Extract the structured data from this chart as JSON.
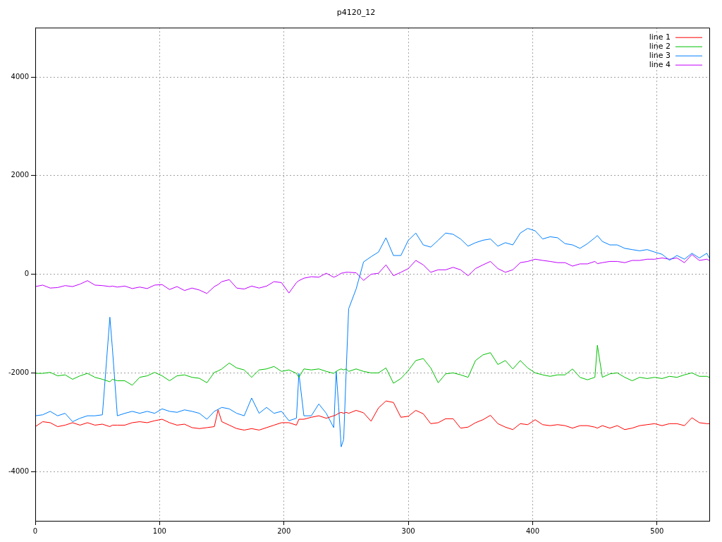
{
  "chart_data": {
    "type": "line",
    "title": "p4120_12",
    "xlim": [
      0,
      542
    ],
    "xticks": [
      0,
      100,
      200,
      300,
      400,
      500
    ],
    "ylim": [
      -5000,
      5000
    ],
    "yticks": [
      -4000,
      -2000,
      0,
      2000,
      4000
    ],
    "grid": true,
    "legend": "top right",
    "marker": "none",
    "line_style": "solid",
    "x": [
      0,
      6,
      12,
      18,
      24,
      30,
      36,
      42,
      48,
      54,
      60,
      62,
      66,
      72,
      78,
      84,
      90,
      96,
      102,
      108,
      114,
      120,
      126,
      132,
      138,
      144,
      147,
      150,
      156,
      162,
      168,
      174,
      180,
      186,
      192,
      198,
      204,
      210,
      212,
      216,
      222,
      228,
      234,
      240,
      242,
      244,
      246,
      248,
      250,
      252,
      258,
      264,
      270,
      276,
      282,
      288,
      294,
      300,
      306,
      312,
      318,
      324,
      330,
      336,
      342,
      348,
      354,
      360,
      366,
      372,
      378,
      384,
      390,
      396,
      402,
      408,
      414,
      420,
      426,
      432,
      438,
      444,
      450,
      452,
      456,
      462,
      468,
      474,
      480,
      486,
      492,
      498,
      504,
      510,
      516,
      522,
      528,
      534,
      540,
      542
    ],
    "series": [
      {
        "name": "line 1",
        "color": "#ff0000",
        "values": [
          -3090,
          -2990,
          -3010,
          -3090,
          -3060,
          -3010,
          -3060,
          -3010,
          -3060,
          -3040,
          -3090,
          -3060,
          -3060,
          -3060,
          -3010,
          -2990,
          -3010,
          -2970,
          -2940,
          -3010,
          -3060,
          -3040,
          -3110,
          -3130,
          -3110,
          -3090,
          -2750,
          -2990,
          -3060,
          -3130,
          -3160,
          -3130,
          -3160,
          -3110,
          -3060,
          -3010,
          -3010,
          -3060,
          -2940,
          -2940,
          -2900,
          -2870,
          -2920,
          -2870,
          -2850,
          -2820,
          -2800,
          -2820,
          -2800,
          -2820,
          -2760,
          -2810,
          -2980,
          -2710,
          -2570,
          -2600,
          -2900,
          -2880,
          -2760,
          -2830,
          -3030,
          -3010,
          -2930,
          -2930,
          -3120,
          -3100,
          -3010,
          -2950,
          -2860,
          -3030,
          -3100,
          -3150,
          -3030,
          -3050,
          -2950,
          -3050,
          -3070,
          -3050,
          -3070,
          -3120,
          -3070,
          -3070,
          -3100,
          -3120,
          -3070,
          -3120,
          -3070,
          -3150,
          -3120,
          -3070,
          -3050,
          -3030,
          -3070,
          -3030,
          -3030,
          -3070,
          -2910,
          -3010,
          -3030,
          -3030
        ]
      },
      {
        "name": "line 2",
        "color": "#00c000",
        "values": [
          -2010,
          -2010,
          -1990,
          -2060,
          -2040,
          -2130,
          -2060,
          -2010,
          -2090,
          -2130,
          -2180,
          -2130,
          -2160,
          -2160,
          -2250,
          -2090,
          -2060,
          -1990,
          -2060,
          -2160,
          -2060,
          -2040,
          -2090,
          -2110,
          -2200,
          -1990,
          -1960,
          -1920,
          -1800,
          -1900,
          -1940,
          -2090,
          -1940,
          -1920,
          -1870,
          -1970,
          -1940,
          -2010,
          -2090,
          -1920,
          -1940,
          -1920,
          -1970,
          -2010,
          -1970,
          -1940,
          -1920,
          -1940,
          -1920,
          -1970,
          -1920,
          -1970,
          -2000,
          -2000,
          -1900,
          -2210,
          -2115,
          -1950,
          -1750,
          -1710,
          -1900,
          -2200,
          -2020,
          -2000,
          -2040,
          -2090,
          -1750,
          -1635,
          -1590,
          -1830,
          -1750,
          -1920,
          -1750,
          -1900,
          -2000,
          -2040,
          -2070,
          -2040,
          -2040,
          -1920,
          -2090,
          -2140,
          -2090,
          -1440,
          -2090,
          -2020,
          -2000,
          -2090,
          -2160,
          -2090,
          -2115,
          -2090,
          -2115,
          -2070,
          -2090,
          -2040,
          -2000,
          -2070,
          -2070,
          -2090
        ]
      },
      {
        "name": "line 3",
        "color": "#0080ff",
        "values": [
          -2870,
          -2850,
          -2780,
          -2870,
          -2820,
          -2990,
          -2920,
          -2870,
          -2870,
          -2850,
          -870,
          -1490,
          -2870,
          -2820,
          -2780,
          -2820,
          -2780,
          -2820,
          -2730,
          -2780,
          -2800,
          -2750,
          -2780,
          -2820,
          -2940,
          -2780,
          -2740,
          -2700,
          -2730,
          -2820,
          -2870,
          -2510,
          -2820,
          -2700,
          -2820,
          -2780,
          -2970,
          -2920,
          -2010,
          -2870,
          -2870,
          -2630,
          -2820,
          -3110,
          -1970,
          -2700,
          -3500,
          -3350,
          -1970,
          -700,
          -300,
          250,
          355,
          450,
          740,
          380,
          380,
          690,
          835,
          595,
          550,
          690,
          835,
          810,
          715,
          570,
          640,
          690,
          715,
          570,
          640,
          595,
          835,
          930,
          880,
          715,
          760,
          740,
          620,
          595,
          525,
          620,
          740,
          785,
          665,
          595,
          595,
          525,
          500,
          475,
          500,
          450,
          405,
          285,
          380,
          305,
          425,
          330,
          425,
          330
        ]
      },
      {
        "name": "line 4",
        "color": "#c000ff",
        "values": [
          -250,
          -220,
          -280,
          -270,
          -230,
          -250,
          -200,
          -130,
          -220,
          -230,
          -250,
          -240,
          -260,
          -240,
          -290,
          -260,
          -290,
          -220,
          -210,
          -310,
          -250,
          -330,
          -280,
          -320,
          -390,
          -250,
          -210,
          -150,
          -110,
          -280,
          -300,
          -240,
          -280,
          -240,
          -150,
          -170,
          -380,
          -170,
          -130,
          -80,
          -50,
          -60,
          20,
          -60,
          -40,
          -10,
          20,
          30,
          40,
          40,
          30,
          -125,
          0,
          20,
          190,
          -30,
          40,
          115,
          280,
          190,
          40,
          90,
          90,
          140,
          90,
          -30,
          115,
          190,
          260,
          115,
          40,
          90,
          235,
          260,
          305,
          280,
          260,
          235,
          235,
          165,
          210,
          210,
          260,
          215,
          235,
          260,
          260,
          235,
          280,
          280,
          305,
          305,
          330,
          305,
          330,
          235,
          400,
          280,
          305,
          280
        ]
      }
    ]
  }
}
